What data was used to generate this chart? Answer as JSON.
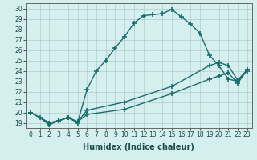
{
  "xlabel": "Humidex (Indice chaleur)",
  "bg_color": "#d5eeee",
  "grid_color": "#b0cccc",
  "line_color": "#1a6e6e",
  "xlim": [
    -0.5,
    23.5
  ],
  "ylim": [
    18.5,
    30.5
  ],
  "xticks": [
    0,
    1,
    2,
    3,
    4,
    5,
    6,
    7,
    8,
    9,
    10,
    11,
    12,
    13,
    14,
    15,
    16,
    17,
    18,
    19,
    20,
    21,
    22,
    23
  ],
  "yticks": [
    19,
    20,
    21,
    22,
    23,
    24,
    25,
    26,
    27,
    28,
    29,
    30
  ],
  "line1_x": [
    0,
    1,
    2,
    3,
    4,
    5,
    6,
    7,
    8,
    9,
    10,
    11,
    12,
    13,
    14,
    15,
    16,
    17,
    18,
    19,
    20,
    21,
    22,
    23
  ],
  "line1_y": [
    20.0,
    19.5,
    18.8,
    19.2,
    19.5,
    19.0,
    22.2,
    24.0,
    25.0,
    26.2,
    27.3,
    28.6,
    29.3,
    29.4,
    29.5,
    29.9,
    29.2,
    28.5,
    27.6,
    25.5,
    24.5,
    23.2,
    23.0,
    24.0
  ],
  "line2_x": [
    0,
    2,
    3,
    4,
    5,
    6,
    10,
    15,
    19,
    20,
    21,
    22,
    23
  ],
  "line2_y": [
    20.0,
    19.0,
    19.2,
    19.5,
    19.1,
    19.8,
    20.3,
    21.8,
    23.2,
    23.5,
    23.8,
    22.8,
    24.1
  ],
  "line3_x": [
    0,
    2,
    3,
    4,
    5,
    6,
    10,
    15,
    19,
    20,
    21,
    22,
    23
  ],
  "line3_y": [
    20.0,
    19.0,
    19.2,
    19.5,
    19.1,
    20.2,
    21.0,
    22.5,
    24.5,
    24.8,
    24.5,
    23.1,
    24.1
  ],
  "marker": "+",
  "markersize": 4,
  "markeredgewidth": 1.2,
  "linewidth": 1.0,
  "xlabel_fontsize": 7,
  "tick_fontsize": 5.5
}
